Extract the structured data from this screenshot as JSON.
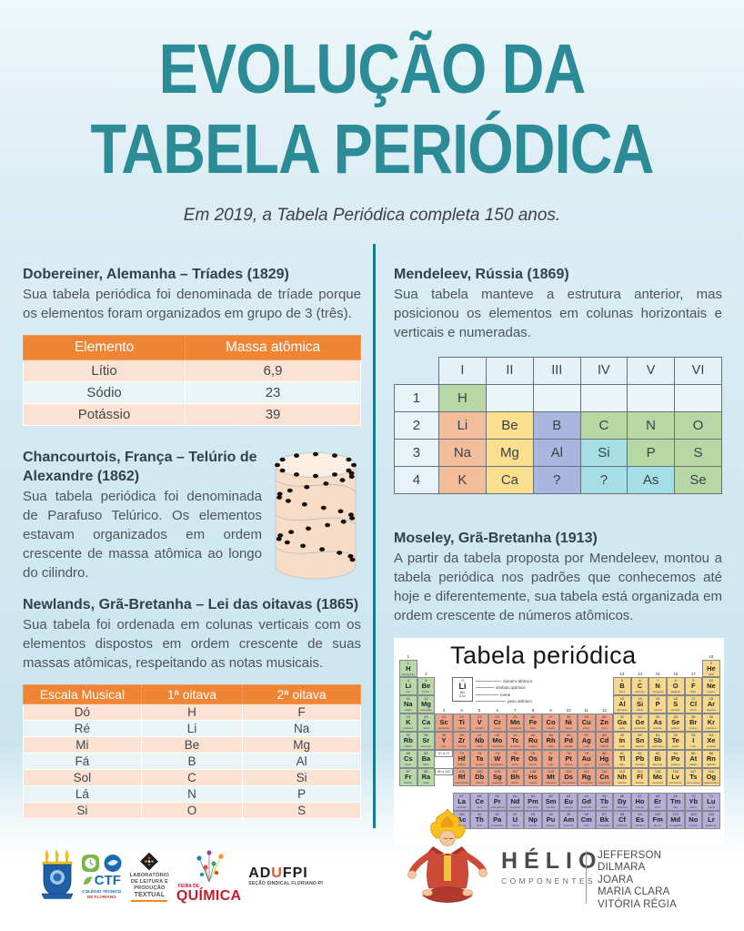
{
  "poster": {
    "title_line1": "EVOLUÇÃO DA",
    "title_line2": "TABELA PERIÓDICA",
    "subtitle": "Em 2019, a Tabela Periódica completa 150 anos.",
    "accent_teal": "#2b8b96",
    "accent_orange": "#ee8434"
  },
  "sections": {
    "dobereiner": {
      "heading": "Dobereiner, Alemanha – Tríades (1829)",
      "body": "Sua tabela periódica foi denominada de tríade porque os elementos foram organizados em grupo de 3 (três).",
      "table": {
        "headers": [
          "Elemento",
          "Massa atômica"
        ],
        "rows": [
          [
            "Lítio",
            "6,9"
          ],
          [
            "Sódio",
            "23"
          ],
          [
            "Potássio",
            "39"
          ]
        ]
      }
    },
    "chancourtois": {
      "heading": "Chancourtois, França – Telúrio de Alexandre (1862)",
      "body": "Sua tabela periódica foi denominada de Parafuso Telúrico. Os elementos estavam organizados em ordem crescente de massa atômica ao longo do cilindro."
    },
    "newlands": {
      "heading": "Newlands, Grã-Bretanha – Lei das oitavas (1865)",
      "body": "Sua tabela foi ordenada em colunas verticais com os elementos dispostos em ordem crescente de suas massas atômicas, respeitando as notas musicais.",
      "table": {
        "headers": [
          "Escala Musical",
          "1ª oitava",
          "2ª oitava"
        ],
        "rows": [
          [
            "Dó",
            "H",
            "F"
          ],
          [
            "Ré",
            "Li",
            "Na"
          ],
          [
            "Mi",
            "Be",
            "Mg"
          ],
          [
            "Fá",
            "B",
            "Al"
          ],
          [
            "Sol",
            "C",
            "Si"
          ],
          [
            "Lá",
            "N",
            "P"
          ],
          [
            "Si",
            "O",
            "S"
          ]
        ]
      }
    },
    "mendeleev": {
      "heading": "Mendeleev, Rússia (1869)",
      "body": "Sua tabela manteve a estrutura anterior, mas posicionou os elementos em colunas horizontais e verticais e numeradas.",
      "grid": {
        "columns": [
          "I",
          "II",
          "III",
          "IV",
          "V",
          "VI"
        ],
        "row_labels": [
          "1",
          "2",
          "3",
          "4"
        ],
        "rows": [
          [
            [
              "H",
              "g"
            ],
            [
              "",
              "w"
            ],
            [
              "",
              "w"
            ],
            [
              "",
              "w"
            ],
            [
              "",
              "w"
            ],
            [
              "",
              "w"
            ]
          ],
          [
            [
              "Li",
              "s"
            ],
            [
              "Be",
              "y"
            ],
            [
              "B",
              "b"
            ],
            [
              "C",
              "g"
            ],
            [
              "N",
              "g"
            ],
            [
              "O",
              "g"
            ]
          ],
          [
            [
              "Na",
              "s"
            ],
            [
              "Mg",
              "y"
            ],
            [
              "Al",
              "b"
            ],
            [
              "Si",
              "c"
            ],
            [
              "P",
              "g"
            ],
            [
              "S",
              "g"
            ]
          ],
          [
            [
              "K",
              "s"
            ],
            [
              "Ca",
              "y"
            ],
            [
              "?",
              "b"
            ],
            [
              "?",
              "c"
            ],
            [
              "As",
              "c"
            ],
            [
              "Se",
              "g"
            ]
          ]
        ],
        "cell_colors": {
          "g": "#b7d7a5",
          "s": "#f3bd9a",
          "y": "#fbdf8e",
          "b": "#a9b6de",
          "c": "#a6dee6",
          "w": "white"
        }
      }
    },
    "moseley": {
      "heading": "Moseley, Grã-Bretanha (1913)",
      "body": "A partir da tabela proposta por Mendeleev, montou a tabela periódica nos padrões que conhecemos até hoje e diferentemente, sua tabela está organizada em ordem crescente de números atômicos."
    }
  },
  "periodic_table": {
    "title": "Tabela periódica",
    "legend": {
      "example": {
        "number": "3",
        "symbol": "Li",
        "name": "lítio",
        "mass": "6,94"
      },
      "labels": [
        "número atômico",
        "símbolo químico",
        "nome",
        "peso atômico"
      ]
    },
    "markers": {
      "lanthanides": "57 a 71",
      "actinides": "89 a 103"
    },
    "group_labels": [
      "1",
      "2",
      "3",
      "4",
      "5",
      "6",
      "7",
      "8",
      "9",
      "10",
      "11",
      "12",
      "13",
      "14",
      "15",
      "16",
      "17",
      "18"
    ],
    "colors": {
      "s_block": "#b9d8a9",
      "d_block": "#eca287",
      "p_block": "#f6d88d",
      "f_block": "#b5afd7"
    },
    "periods": [
      [
        [
          1,
          "H",
          "hidrogênio",
          1
        ],
        [
          2,
          "He",
          "hélio",
          18
        ]
      ],
      [
        [
          3,
          "Li",
          "lítio",
          1
        ],
        [
          4,
          "Be",
          "berílio",
          2
        ],
        [
          5,
          "B",
          "boro",
          13
        ],
        [
          6,
          "C",
          "carbono",
          14
        ],
        [
          7,
          "N",
          "nitrogênio",
          15
        ],
        [
          8,
          "O",
          "oxigênio",
          16
        ],
        [
          9,
          "F",
          "flúor",
          17
        ],
        [
          10,
          "Ne",
          "neônio",
          18
        ]
      ],
      [
        [
          11,
          "Na",
          "sódio",
          1
        ],
        [
          12,
          "Mg",
          "magnésio",
          2
        ],
        [
          13,
          "Al",
          "alumínio",
          13
        ],
        [
          14,
          "Si",
          "silício",
          14
        ],
        [
          15,
          "P",
          "fósforo",
          15
        ],
        [
          16,
          "S",
          "enxofre",
          16
        ],
        [
          17,
          "Cl",
          "cloro",
          17
        ],
        [
          18,
          "Ar",
          "argônio",
          18
        ]
      ],
      [
        [
          19,
          "K",
          "potássio",
          1
        ],
        [
          20,
          "Ca",
          "cálcio",
          2
        ],
        [
          21,
          "Sc",
          "escândio",
          3
        ],
        [
          22,
          "Ti",
          "titânio",
          4
        ],
        [
          23,
          "V",
          "vanádio",
          5
        ],
        [
          24,
          "Cr",
          "cromo",
          6
        ],
        [
          25,
          "Mn",
          "manganês",
          7
        ],
        [
          26,
          "Fe",
          "ferro",
          8
        ],
        [
          27,
          "Co",
          "cobalto",
          9
        ],
        [
          28,
          "Ni",
          "níquel",
          10
        ],
        [
          29,
          "Cu",
          "cobre",
          11
        ],
        [
          30,
          "Zn",
          "zinco",
          12
        ],
        [
          31,
          "Ga",
          "gálio",
          13
        ],
        [
          32,
          "Ge",
          "germânio",
          14
        ],
        [
          33,
          "As",
          "arsênio",
          15
        ],
        [
          34,
          "Se",
          "selênio",
          16
        ],
        [
          35,
          "Br",
          "bromo",
          17
        ],
        [
          36,
          "Kr",
          "criptônio",
          18
        ]
      ],
      [
        [
          37,
          "Rb",
          "rubídio",
          1
        ],
        [
          38,
          "Sr",
          "estrôncio",
          2
        ],
        [
          39,
          "Y",
          "ítrio",
          3
        ],
        [
          40,
          "Zr",
          "zircônio",
          4
        ],
        [
          41,
          "Nb",
          "nióbio",
          5
        ],
        [
          42,
          "Mo",
          "molibdênio",
          6
        ],
        [
          43,
          "Tc",
          "tecnécio",
          7
        ],
        [
          44,
          "Ru",
          "rutênio",
          8
        ],
        [
          45,
          "Rh",
          "ródio",
          9
        ],
        [
          46,
          "Pd",
          "paládio",
          10
        ],
        [
          47,
          "Ag",
          "prata",
          11
        ],
        [
          48,
          "Cd",
          "cádmio",
          12
        ],
        [
          49,
          "In",
          "índio",
          13
        ],
        [
          50,
          "Sn",
          "estanho",
          14
        ],
        [
          51,
          "Sb",
          "antimônio",
          15
        ],
        [
          52,
          "Te",
          "telúrio",
          16
        ],
        [
          53,
          "I",
          "iodo",
          17
        ],
        [
          54,
          "Xe",
          "xenônio",
          18
        ]
      ],
      [
        [
          55,
          "Cs",
          "césio",
          1
        ],
        [
          56,
          "Ba",
          "bário",
          2
        ],
        [
          72,
          "Hf",
          "háfnio",
          4
        ],
        [
          73,
          "Ta",
          "tântalo",
          5
        ],
        [
          74,
          "W",
          "tungstênio",
          6
        ],
        [
          75,
          "Re",
          "rênio",
          7
        ],
        [
          76,
          "Os",
          "ósmio",
          8
        ],
        [
          77,
          "Ir",
          "irídio",
          9
        ],
        [
          78,
          "Pt",
          "platina",
          10
        ],
        [
          79,
          "Au",
          "ouro",
          11
        ],
        [
          80,
          "Hg",
          "mercúrio",
          12
        ],
        [
          81,
          "Tl",
          "tálio",
          13
        ],
        [
          82,
          "Pb",
          "chumbo",
          14
        ],
        [
          83,
          "Bi",
          "bismuto",
          15
        ],
        [
          84,
          "Po",
          "polônio",
          16
        ],
        [
          85,
          "At",
          "astato",
          17
        ],
        [
          86,
          "Rn",
          "radônio",
          18
        ]
      ],
      [
        [
          87,
          "Fr",
          "frâncio",
          1
        ],
        [
          88,
          "Ra",
          "rádio",
          2
        ],
        [
          104,
          "Rf",
          "rutherfórdio",
          4
        ],
        [
          105,
          "Db",
          "dúbnio",
          5
        ],
        [
          106,
          "Sg",
          "seabórgio",
          6
        ],
        [
          107,
          "Bh",
          "bóhrio",
          7
        ],
        [
          108,
          "Hs",
          "hássio",
          8
        ],
        [
          109,
          "Mt",
          "meitnério",
          9
        ],
        [
          110,
          "Ds",
          "darmstádtio",
          10
        ],
        [
          111,
          "Rg",
          "roentgênio",
          11
        ],
        [
          112,
          "Cn",
          "copernício",
          12
        ],
        [
          113,
          "Nh",
          "nihônio",
          13
        ],
        [
          114,
          "Fl",
          "fleróvio",
          14
        ],
        [
          115,
          "Mc",
          "moscóvio",
          15
        ],
        [
          116,
          "Lv",
          "livermório",
          16
        ],
        [
          117,
          "Ts",
          "tennessino",
          17
        ],
        [
          118,
          "Og",
          "oganessônio",
          18
        ]
      ]
    ],
    "lanthanides": [
      [
        57,
        "La",
        "lantânio"
      ],
      [
        58,
        "Ce",
        "cério"
      ],
      [
        59,
        "Pr",
        "praseodímio"
      ],
      [
        60,
        "Nd",
        "neodímio"
      ],
      [
        61,
        "Pm",
        "promécio"
      ],
      [
        62,
        "Sm",
        "samário"
      ],
      [
        63,
        "Eu",
        "európio"
      ],
      [
        64,
        "Gd",
        "gadolínio"
      ],
      [
        65,
        "Tb",
        "térbio"
      ],
      [
        66,
        "Dy",
        "disprósio"
      ],
      [
        67,
        "Ho",
        "hólmio"
      ],
      [
        68,
        "Er",
        "érbio"
      ],
      [
        69,
        "Tm",
        "túlio"
      ],
      [
        70,
        "Yb",
        "itérbio"
      ],
      [
        71,
        "Lu",
        "lutécio"
      ]
    ],
    "actinides": [
      [
        89,
        "Ac",
        "actínio"
      ],
      [
        90,
        "Th",
        "tório"
      ],
      [
        91,
        "Pa",
        "protactínio"
      ],
      [
        92,
        "U",
        "urânio"
      ],
      [
        93,
        "Np",
        "netúnio"
      ],
      [
        94,
        "Pu",
        "plutônio"
      ],
      [
        95,
        "Am",
        "amerício"
      ],
      [
        96,
        "Cm",
        "cúrio"
      ],
      [
        97,
        "Bk",
        "berquélio"
      ],
      [
        98,
        "Cf",
        "califórnio"
      ],
      [
        99,
        "Es",
        "einstênio"
      ],
      [
        100,
        "Fm",
        "férmio"
      ],
      [
        101,
        "Md",
        "mendelévio"
      ],
      [
        102,
        "No",
        "nobélio"
      ],
      [
        103,
        "Lr",
        "laurêncio"
      ]
    ]
  },
  "footer": {
    "logos": {
      "ufpi_crest_icon": "university-crest-with-three-torches",
      "ctf": {
        "abbr": "CTF",
        "line1": "COLÉGIO TÉCNICO",
        "line2": "DE FLORIANO"
      },
      "lab": {
        "lines": [
          "LABORATÓRIO",
          "DE LEITURA E",
          "PRODUÇÃO",
          "TEXTUAL"
        ]
      },
      "quimica": {
        "small": "FEIRA DE",
        "big": "QUÍMICA"
      },
      "adufpi": {
        "big_a": "AD",
        "big_u": "U",
        "big_b": "FPI",
        "small": "SEÇÃO SINDICAL FLORIANO-PI"
      }
    },
    "mascot_icon": "helio-flame-mascot",
    "helio": {
      "title": "HÉLIO",
      "subtitle": "COMPONENTES"
    },
    "credits": [
      "JEFFERSON",
      "DILMARA",
      "JOARA",
      "MARIA CLARA",
      "VITÓRIA RÉGIA"
    ]
  }
}
